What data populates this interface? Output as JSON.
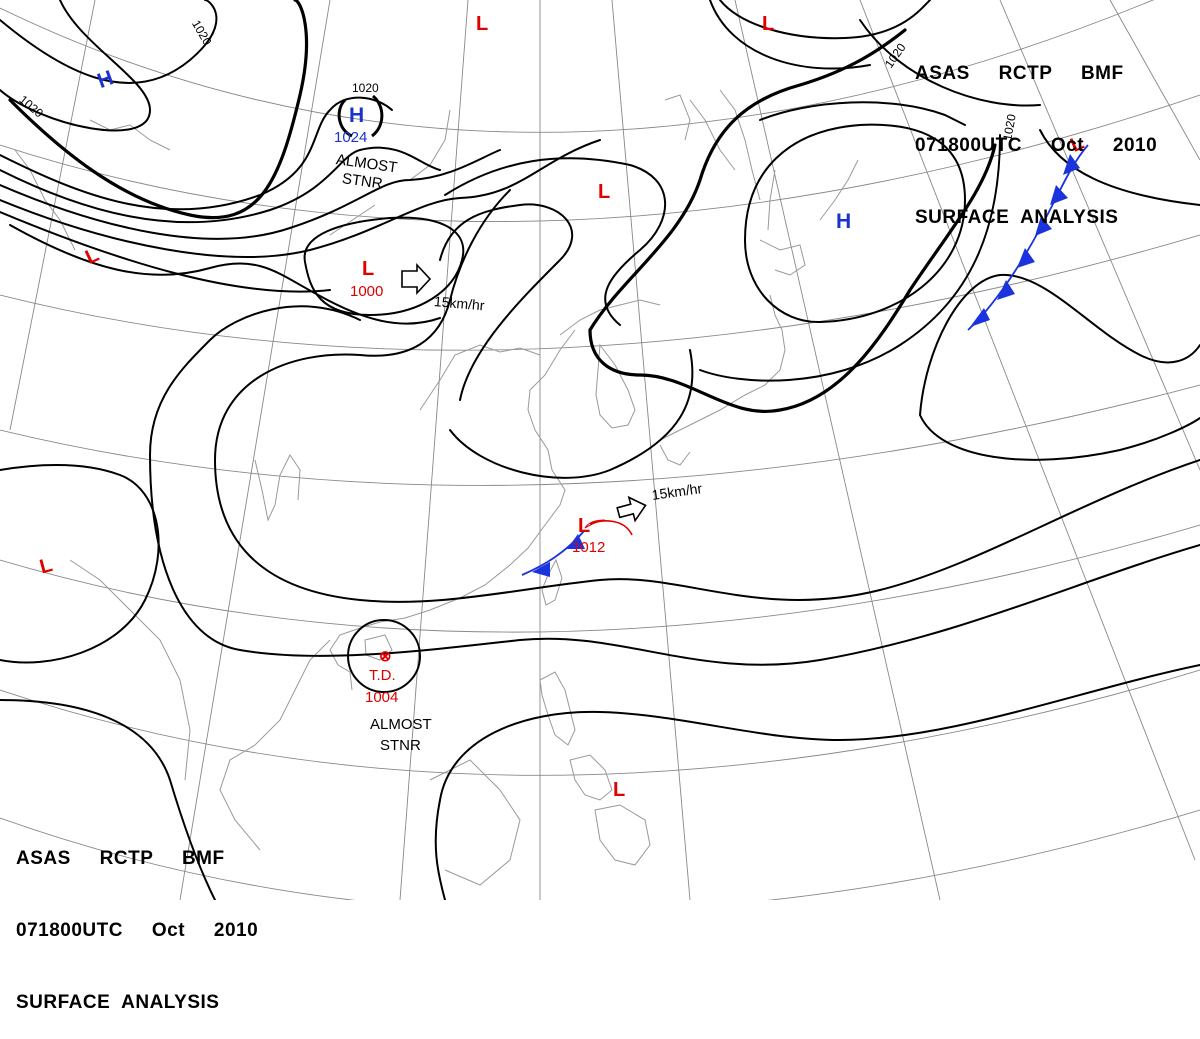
{
  "header": {
    "line1": "ASAS     RCTP     BMF",
    "line2": "071800UTC     Oct     2010",
    "line3": "SURFACE  ANALYSIS"
  },
  "isobar_labels": {
    "a": "1020",
    "b": "1020",
    "c": "1020",
    "d": "1020",
    "e": "1020"
  },
  "pressure_centers": {
    "high_nw": {
      "symbol": "H"
    },
    "high_n": {
      "symbol": "H",
      "value": "1024",
      "note1": "ALMOST",
      "note2": "STNR"
    },
    "high_japan": {
      "symbol": "H"
    },
    "low_top_center": {
      "symbol": "L"
    },
    "low_top_right": {
      "symbol": "L"
    },
    "low_far_ne": {
      "symbol": "L"
    },
    "low_nw": {
      "symbol": "L"
    },
    "low_mongolia": {
      "symbol": "L",
      "value": "1000",
      "movement": "15km/hr"
    },
    "low_korea_north": {
      "symbol": "L"
    },
    "low_west": {
      "symbol": "L"
    },
    "low_east_china_sea": {
      "symbol": "L",
      "value": "1012",
      "movement": "15km/hr"
    },
    "low_philippines": {
      "symbol": "L"
    },
    "td_south_china_sea": {
      "symbol": "⊗",
      "label": "T.D.",
      "value": "1004",
      "note1": "ALMOST",
      "note2": "STNR"
    }
  },
  "colors": {
    "isobar": "#000000",
    "grid": "#888888",
    "coast": "#999999",
    "high": "#1a33cc",
    "low": "#e00000",
    "cold_front": "#1a33dd",
    "warm_front": "#e00000"
  }
}
